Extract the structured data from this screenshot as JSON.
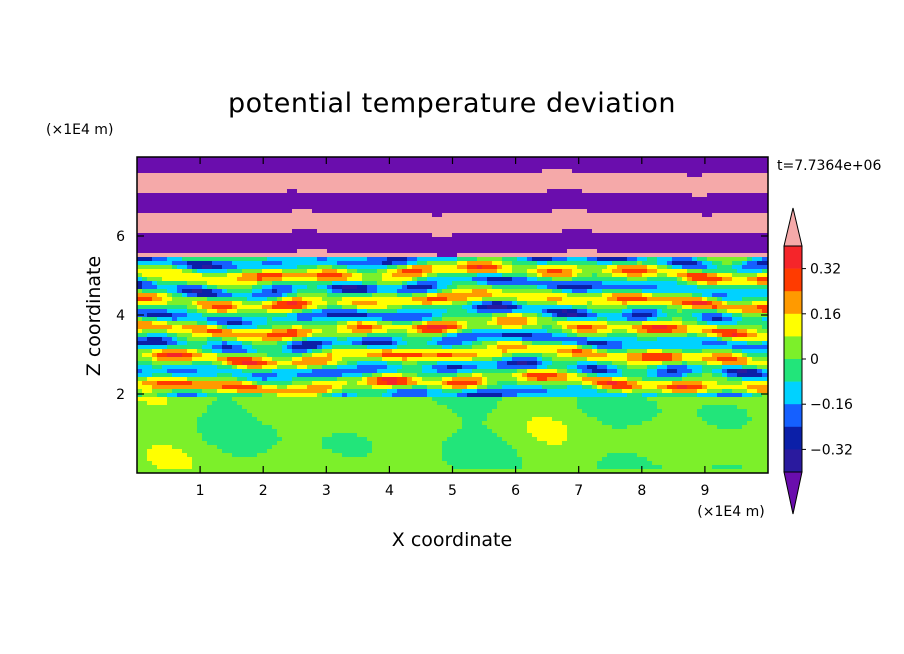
{
  "chart_data": {
    "type": "heatmap",
    "title": "potential temperature deviation",
    "xlabel": "X coordinate",
    "ylabel": "Z coordinate",
    "x_unit": "(×1E4 m)",
    "z_unit": "(×1E4 m)",
    "time_label": "t=7.7364e+06",
    "xlim": [
      0,
      10
    ],
    "zlim": [
      0,
      8
    ],
    "x_ticks": [
      "1",
      "2",
      "3",
      "4",
      "5",
      "6",
      "7",
      "8",
      "9"
    ],
    "z_ticks": [
      "2",
      "4",
      "6"
    ],
    "colorbar": {
      "labels": [
        "0.32",
        "0.16",
        "0",
        "−0.16",
        "−0.32"
      ],
      "levels": [
        -0.4,
        -0.32,
        -0.24,
        -0.16,
        -0.08,
        0,
        0.08,
        0.16,
        0.24,
        0.32,
        0.4
      ],
      "colors": [
        "#6a0dad",
        "#2a1a9e",
        "#0b1fa8",
        "#1560ff",
        "#00d2ff",
        "#22e57a",
        "#7cf02a",
        "#ffff00",
        "#ff9a00",
        "#ff3b00",
        "#f5252a",
        "#f5a9a9"
      ],
      "extend": "both"
    },
    "bands": [
      {
        "z_bottom": 0,
        "z_top": 1.9,
        "dominant": "0 to 0.08"
      },
      {
        "z_bottom": 1.9,
        "z_top": 5.5,
        "dominant": "mixed −0.4 to 0.4"
      },
      {
        "z_bottom": 5.5,
        "z_top": 8.0,
        "dominant": "alternating < −0.4 and > 0.4"
      }
    ]
  }
}
